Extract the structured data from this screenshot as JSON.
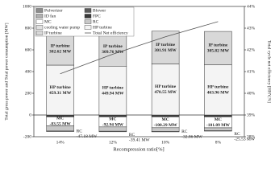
{
  "chart_data": {
    "type": "bar",
    "stacked": true,
    "xlabel": "Recompression ratio[%]",
    "ylabel": "Total gross power and Total power consumption [MW]",
    "y2label": "Total cycle net efficiency [HHV,%]",
    "categories": [
      "14%",
      "12%",
      "10%",
      "8%"
    ],
    "ylim": [
      -200,
      1000
    ],
    "yticks": [
      -200,
      0,
      200,
      400,
      600,
      800,
      1000
    ],
    "y2lim": [
      38,
      44
    ],
    "y2ticks": [
      {
        "value": 38,
        "label": "38%"
      },
      {
        "value": 39,
        "label": "39%"
      },
      {
        "value": 40,
        "label": "40%"
      },
      {
        "value": 41,
        "label": "41%"
      },
      {
        "value": 42,
        "label": "42%"
      },
      {
        "value": 43,
        "label": "43%"
      },
      {
        "value": 44,
        "label": "44%"
      }
    ],
    "legend": "upper left",
    "grid": false,
    "series": [
      {
        "name": "Pulverizer",
        "color": "#8c8c8c",
        "values": [
          -3,
          -3,
          -3,
          -3
        ]
      },
      {
        "name": "Blower",
        "color": "#5a5a5a",
        "values": [
          -6,
          -6,
          -6,
          -6
        ]
      },
      {
        "name": "ID fan",
        "color": "#b0b0b0",
        "values": [
          -4,
          -4,
          -4,
          -4
        ]
      },
      {
        "name": "FPC",
        "color": "#3a3a3a",
        "values": [
          -4,
          -4,
          -4,
          -4
        ]
      },
      {
        "name": "MC",
        "color": "#ffffff",
        "values": [
          -83.55,
          -92.94,
          -100.29,
          -101.09
        ],
        "value_labels": [
          "-83.55 MW",
          "-92.94 MW",
          "-100.29 MW",
          "-101.09 MW"
        ]
      },
      {
        "name": "RC",
        "color": "#c8c8c8",
        "values": [
          -47.18,
          -39.41,
          -32.86,
          -25.53
        ],
        "value_labels": [
          "-47.18 MW",
          "-39.41 MW",
          "-32.86 MW",
          "-25.53 MW"
        ]
      },
      {
        "name": "cooling water pump",
        "color": "#e0e0e0",
        "values": [
          -5,
          -5,
          -5,
          -5
        ]
      },
      {
        "name": "HP turbine",
        "color": "#f4f4f4",
        "values": [
          459.31,
          449.94,
          470.55,
          463.96
        ],
        "value_labels": [
          "459.31 MW",
          "449.94 MW",
          "470.55 MW",
          "463.96 MW"
        ]
      },
      {
        "name": "IP turbine",
        "color": "#d8d8d8",
        "values": [
          302.62,
          309.76,
          301.91,
          305.82
        ],
        "value_labels": [
          "302.62 MW",
          "309.76 MW",
          "301.91 MW",
          "305.82 MW"
        ]
      },
      {
        "name": "Total Net efficiency",
        "color": "#555555",
        "type": "line",
        "axis": "y2",
        "values": [
          40.9,
          41.8,
          42.6,
          43.3
        ]
      }
    ]
  }
}
